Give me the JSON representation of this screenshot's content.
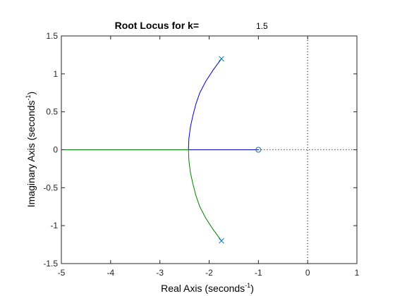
{
  "chart_data": {
    "type": "line",
    "title": "Root Locus for k=",
    "title_value": "1.5",
    "xlabel": "Real Axis (seconds",
    "xlabel_sup": "-1",
    "xlabel_suffix": ")",
    "ylabel": "Imaginary Axis (seconds",
    "ylabel_sup": "-1",
    "ylabel_suffix": ")",
    "xlim": [
      -5,
      1
    ],
    "ylim": [
      -1.5,
      1.5
    ],
    "x_ticks": [
      -5,
      -4,
      -3,
      -2,
      -1,
      0,
      1
    ],
    "x_tick_labels": [
      "-5",
      "-4",
      "-3",
      "-2",
      "-1",
      "0",
      "1"
    ],
    "y_ticks": [
      -1.5,
      -1,
      -0.5,
      0,
      0.5,
      1,
      1.5
    ],
    "y_tick_labels": [
      "-1.5",
      "-1",
      "-0.5",
      "0",
      "0.5",
      "1",
      "1.5"
    ],
    "grid": false,
    "series": [
      {
        "color": "#0000cc",
        "points": [
          [
            -1.75,
            1.2
          ],
          [
            -1.92,
            1.05
          ],
          [
            -2.07,
            0.9
          ],
          [
            -2.19,
            0.75
          ],
          [
            -2.27,
            0.6
          ],
          [
            -2.33,
            0.45
          ],
          [
            -2.38,
            0.3
          ],
          [
            -2.41,
            0.15
          ],
          [
            -2.42,
            0.0
          ],
          [
            -1.0,
            0.0
          ]
        ]
      },
      {
        "color": "#008000",
        "points": [
          [
            -1.75,
            -1.2
          ],
          [
            -1.92,
            -1.05
          ],
          [
            -2.07,
            -0.9
          ],
          [
            -2.19,
            -0.75
          ],
          [
            -2.27,
            -0.6
          ],
          [
            -2.33,
            -0.45
          ],
          [
            -2.38,
            -0.3
          ],
          [
            -2.41,
            -0.15
          ],
          [
            -2.42,
            0.0
          ],
          [
            -5.0,
            0.0
          ]
        ]
      }
    ],
    "poles": [
      [
        -1.75,
        1.2
      ],
      [
        -1.75,
        -1.2
      ]
    ],
    "zeros": [
      [
        -1.0,
        0.0
      ]
    ],
    "marker_color": "#0072bd",
    "reference_lines": [
      {
        "orientation": "horizontal",
        "at": 0,
        "from": -1.0,
        "to": 1,
        "style": "dotted"
      },
      {
        "orientation": "vertical",
        "at": 0,
        "from": -1.5,
        "to": 1.5,
        "style": "dotted"
      }
    ]
  }
}
